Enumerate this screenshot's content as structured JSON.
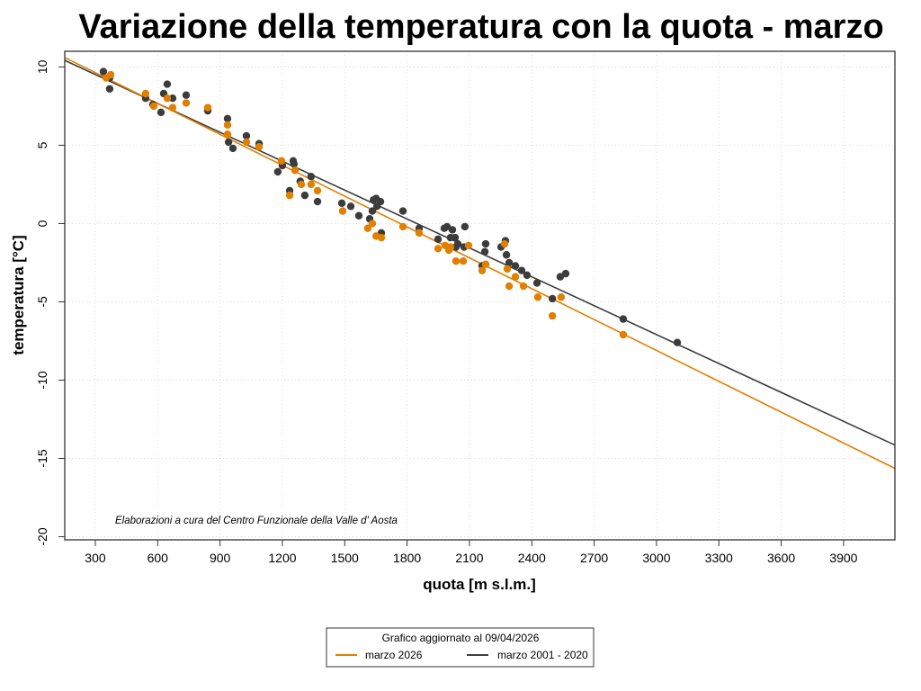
{
  "chart_data": {
    "type": "scatter",
    "title": "Variazione della temperatura con la quota -  marzo",
    "xlabel": "quota [m s.l.m.]",
    "ylabel": "temperatura [°C]",
    "xlim": [
      153,
      4147
    ],
    "ylim": [
      -20.2,
      11.0
    ],
    "x_ticks": [
      300,
      600,
      900,
      1200,
      1500,
      1800,
      2100,
      2400,
      2700,
      3000,
      3300,
      3600,
      3900
    ],
    "y_ticks": [
      10,
      5,
      0,
      -5,
      -10,
      -15,
      -20
    ],
    "grid": true,
    "annotation": "Elaborazioni a cura del Centro Funzionale della Valle d' Aosta",
    "legend": {
      "placement": "bottom-center",
      "title": "Grafico aggiornato al 09/04/2026",
      "entries": [
        {
          "label": "marzo 2026",
          "color": "#E07F00"
        },
        {
          "label": "marzo 2001 - 2020",
          "color": "#3C3C3C"
        }
      ]
    },
    "series": [
      {
        "name": "marzo 2001 - 2020",
        "color": "#3C3C3C",
        "regression": {
          "x": [
            153,
            4147
          ],
          "y": [
            10.42,
            -14.15
          ]
        },
        "points": [
          [
            339,
            9.7
          ],
          [
            369,
            9.3
          ],
          [
            369,
            8.6
          ],
          [
            542,
            8.0
          ],
          [
            577,
            7.6
          ],
          [
            616,
            7.1
          ],
          [
            629,
            8.3
          ],
          [
            646,
            8.9
          ],
          [
            672,
            8.0
          ],
          [
            737,
            8.2
          ],
          [
            841,
            7.2
          ],
          [
            936,
            6.7
          ],
          [
            941,
            5.2
          ],
          [
            962,
            4.8
          ],
          [
            1027,
            5.6
          ],
          [
            1088,
            5.1
          ],
          [
            1178,
            3.3
          ],
          [
            1200,
            3.7
          ],
          [
            1235,
            2.1
          ],
          [
            1252,
            4.0
          ],
          [
            1256,
            3.8
          ],
          [
            1286,
            2.7
          ],
          [
            1308,
            1.8
          ],
          [
            1338,
            3.0
          ],
          [
            1369,
            1.4
          ],
          [
            1486,
            1.3
          ],
          [
            1529,
            1.1
          ],
          [
            1568,
            0.5
          ],
          [
            1620,
            0.3
          ],
          [
            1633,
            0.8
          ],
          [
            1638,
            1.5
          ],
          [
            1651,
            1.6
          ],
          [
            1655,
            1.1
          ],
          [
            1672,
            1.4
          ],
          [
            1676,
            -0.6
          ],
          [
            1780,
            0.8
          ],
          [
            1858,
            -0.3
          ],
          [
            1949,
            -1.0
          ],
          [
            1979,
            -0.3
          ],
          [
            1992,
            -0.2
          ],
          [
            2009,
            -0.9
          ],
          [
            2018,
            -0.4
          ],
          [
            2031,
            -0.9
          ],
          [
            2035,
            -1.5
          ],
          [
            2044,
            -1.3
          ],
          [
            2078,
            -0.2
          ],
          [
            2074,
            -1.5
          ],
          [
            2161,
            -2.7
          ],
          [
            2174,
            -1.8
          ],
          [
            2178,
            -1.3
          ],
          [
            2252,
            -1.5
          ],
          [
            2273,
            -1.1
          ],
          [
            2278,
            -2.0
          ],
          [
            2291,
            -2.5
          ],
          [
            2321,
            -2.7
          ],
          [
            2351,
            -3.0
          ],
          [
            2377,
            -3.3
          ],
          [
            2425,
            -3.8
          ],
          [
            2499,
            -4.8
          ],
          [
            2537,
            -3.4
          ],
          [
            2563,
            -3.2
          ],
          [
            2840,
            -6.1
          ],
          [
            3100,
            -7.6
          ]
        ]
      },
      {
        "name": "marzo 2026",
        "color": "#E07F00",
        "regression": {
          "x": [
            153,
            4147
          ],
          "y": [
            10.6,
            -15.64
          ]
        },
        "points": [
          [
            352,
            9.3
          ],
          [
            374,
            9.5
          ],
          [
            542,
            8.3
          ],
          [
            581,
            7.5
          ],
          [
            646,
            8.0
          ],
          [
            672,
            7.4
          ],
          [
            737,
            7.7
          ],
          [
            841,
            7.4
          ],
          [
            936,
            6.3
          ],
          [
            936,
            5.7
          ],
          [
            1027,
            5.2
          ],
          [
            1088,
            4.9
          ],
          [
            1196,
            4.0
          ],
          [
            1235,
            1.8
          ],
          [
            1261,
            3.4
          ],
          [
            1291,
            2.5
          ],
          [
            1338,
            2.5
          ],
          [
            1369,
            2.1
          ],
          [
            1490,
            0.8
          ],
          [
            1611,
            -0.3
          ],
          [
            1633,
            0.0
          ],
          [
            1651,
            -0.8
          ],
          [
            1676,
            -0.9
          ],
          [
            1780,
            -0.2
          ],
          [
            1858,
            -0.6
          ],
          [
            1949,
            -1.6
          ],
          [
            1983,
            -1.4
          ],
          [
            2001,
            -1.7
          ],
          [
            2009,
            -1.5
          ],
          [
            2035,
            -2.4
          ],
          [
            2070,
            -2.4
          ],
          [
            2096,
            -1.4
          ],
          [
            2161,
            -3.0
          ],
          [
            2178,
            -2.6
          ],
          [
            2269,
            -1.3
          ],
          [
            2282,
            -2.9
          ],
          [
            2291,
            -4.0
          ],
          [
            2321,
            -3.4
          ],
          [
            2360,
            -4.0
          ],
          [
            2429,
            -4.7
          ],
          [
            2499,
            -5.9
          ],
          [
            2541,
            -4.7
          ],
          [
            2840,
            -7.1
          ]
        ]
      }
    ]
  }
}
